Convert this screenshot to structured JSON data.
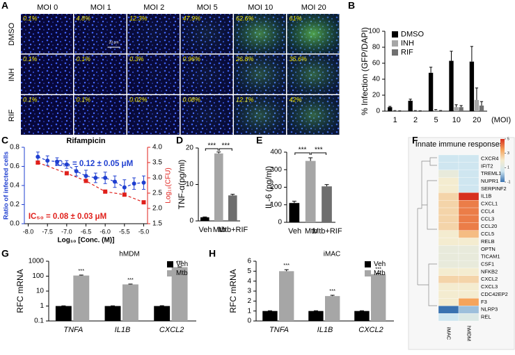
{
  "panel_a": {
    "label": "A",
    "columns": [
      "MOI 0",
      "MOI 1",
      "MOI 2",
      "MOI 5",
      "MOI 10",
      "MOI 20"
    ],
    "rows": [
      {
        "name": "DMSO",
        "values": [
          "0.1%",
          "4.8%",
          "12.3%",
          "47.9%",
          "62.6%",
          "61%"
        ]
      },
      {
        "name": "INH",
        "values": [
          "0.1%",
          "0.1%",
          "0.3%",
          "0.96%",
          "26.8%",
          "35.6%"
        ]
      },
      {
        "name": "RIF",
        "values": [
          "0.1%",
          "0.1%",
          "0.02%",
          "0.08%",
          "12.1%",
          "42%"
        ]
      }
    ],
    "scale_bar": "20 μm"
  },
  "chart_data": [
    {
      "label": "B",
      "type": "grouped_bar",
      "ylabel": "% Infection (GFP/DAPI)",
      "xunit": "(MOI)",
      "categories": [
        "1",
        "2",
        "5",
        "10",
        "20"
      ],
      "series": [
        {
          "name": "DMSO",
          "color": "#000000",
          "values": [
            5,
            13,
            48,
            63,
            62
          ],
          "errors": [
            1,
            2,
            7,
            12,
            19
          ]
        },
        {
          "name": "INH",
          "color": "#a6a6a6",
          "values": [
            0.5,
            0.5,
            1,
            5,
            14
          ],
          "errors": [
            0.2,
            0.2,
            1,
            3,
            15
          ]
        },
        {
          "name": "RIF",
          "color": "#707070",
          "values": [
            0.3,
            0.3,
            0.5,
            5,
            7
          ],
          "errors": [
            0.1,
            0.1,
            0.3,
            2,
            5
          ]
        }
      ],
      "ylim": [
        0,
        100
      ],
      "yticks": [
        0,
        20,
        40,
        60,
        80,
        100
      ],
      "legend": "top-left"
    },
    {
      "label": "C",
      "type": "scatter",
      "title": "Rifampicin",
      "xlabel": "Log₁₀ [Conc. (M)]",
      "ylabel": "Ratio of infected cells",
      "y2label": "Log₁₀(CFU)",
      "series": [
        {
          "color": "#1f3fd0",
          "marker": "circle",
          "x": [
            -7.75,
            -7.5,
            -7.25,
            -7.0,
            -6.75,
            -6.5,
            -6.25,
            -6.0,
            -5.75,
            -5.5,
            -5.25,
            -5.0
          ],
          "values": [
            0.7,
            0.66,
            0.65,
            0.62,
            0.55,
            0.5,
            0.48,
            0.48,
            0.44,
            0.38,
            0.42,
            0.43
          ],
          "errors": [
            0.05,
            0.05,
            0.04,
            0.04,
            0.05,
            0.06,
            0.05,
            0.06,
            0.06,
            0.08,
            0.06,
            0.07
          ]
        },
        {
          "color": "#e0201b",
          "marker": "square",
          "axis": "y2",
          "x": [
            -7.75,
            -7.0,
            -6.5,
            -6.0,
            -5.5,
            -5.0
          ],
          "values": [
            3.5,
            3.15,
            2.9,
            2.55,
            2.45,
            2.2
          ]
        }
      ],
      "annotations": [
        {
          "text": "IC₅₀ = 0.12 ± 0.05 μM",
          "color": "#1f3fd0"
        },
        {
          "text": "IC₅₀ = 0.08 ± 0.03 μM",
          "color": "#e0201b"
        }
      ],
      "xlim": [
        -8.1,
        -4.9
      ],
      "xticks": [
        {
          "value": -8,
          "label": "-8.0"
        },
        -7.5,
        {
          "value": -7,
          "label": "-7.0"
        },
        -6.5,
        {
          "value": -6,
          "label": "-6.0"
        },
        -5.5,
        {
          "value": -5,
          "label": "-5.0"
        }
      ],
      "ylim": [
        0,
        0.8
      ],
      "yticks": [
        {
          "value": 0,
          "label": "0.0"
        },
        0.2,
        0.4,
        0.6,
        0.8
      ],
      "y2lim": [
        1.5,
        4.0
      ],
      "y2ticks": [
        1.5,
        {
          "value": 2,
          "label": "2.0"
        },
        2.5,
        {
          "value": 3,
          "label": "3.0"
        },
        3.5,
        {
          "value": 4,
          "label": "4.0"
        }
      ]
    },
    {
      "label": "D",
      "type": "bar",
      "ylabel": "TNF-α(pg/ml)",
      "categories": [
        "Veh",
        "Mtb",
        "Mtb+RIF"
      ],
      "values": [
        1,
        18.5,
        7
      ],
      "errors": [
        0.1,
        0.4,
        0.3
      ],
      "colors": [
        "#000000",
        "#a6a6a6",
        "#6e6e6e"
      ],
      "ylim": [
        0,
        20
      ],
      "yticks": [
        0,
        10,
        20
      ],
      "significance": [
        "***",
        "***"
      ]
    },
    {
      "label": "E",
      "type": "bar",
      "ylabel": "IL-6 (pg/ml)",
      "categories": [
        "Veh",
        "Mtb",
        "Mtb+RIF"
      ],
      "values": [
        110,
        350,
        205
      ],
      "errors": [
        10,
        18,
        10
      ],
      "colors": [
        "#000000",
        "#a6a6a6",
        "#6e6e6e"
      ],
      "ylim": [
        0,
        400
      ],
      "yticks": [
        0,
        100,
        200,
        300,
        400
      ],
      "significance": [
        "***",
        "***"
      ]
    },
    {
      "label": "F",
      "type": "heatmap",
      "title": "Innate immune responses",
      "columns": [
        "iMAC",
        "hMDM"
      ],
      "rows": [
        "CXCR4",
        "IFIT2",
        "TREML1",
        "NUPR1",
        "SERPINF2",
        "IL1B",
        "CXCL1",
        "CCL4",
        "CCL3",
        "CCL20",
        "CCL5",
        "RELB",
        "OPTN",
        "TICAM1",
        "CSF1",
        "NFKB2",
        "CXCL2",
        "CXCL3",
        "CDC42EP2",
        "F3",
        "NLRP3",
        "REL"
      ],
      "values": [
        [
          0.5,
          0.5
        ],
        [
          0.5,
          0.5
        ],
        [
          1.5,
          0.5
        ],
        [
          2,
          0.5
        ],
        [
          2,
          0.5
        ],
        [
          2.5,
          5
        ],
        [
          2.5,
          4
        ],
        [
          2.5,
          4
        ],
        [
          2.5,
          4
        ],
        [
          2.5,
          4
        ],
        [
          2,
          3
        ],
        [
          2,
          2
        ],
        [
          1.5,
          1.5
        ],
        [
          1.5,
          1.5
        ],
        [
          1.5,
          1.5
        ],
        [
          2,
          2
        ],
        [
          2.5,
          2.5
        ],
        [
          2,
          2
        ],
        [
          2,
          2
        ],
        [
          2,
          3.5
        ],
        [
          -1,
          0
        ],
        [
          0.5,
          1
        ]
      ],
      "zlim": [
        -1,
        5
      ],
      "colors": [
        "#3a72b0",
        "#cfe6f0",
        "#f4ecd0",
        "#f5a45c",
        "#d7301f"
      ],
      "colorbar_ticks": [
        5,
        3,
        1,
        -1
      ]
    },
    {
      "label": "G",
      "type": "grouped_bar",
      "title": "hMDM",
      "ylabel": "RFC mRNA",
      "log": true,
      "categories": [
        "TNFA",
        "IL1B",
        "CXCL2"
      ],
      "series": [
        {
          "name": "Veh",
          "color": "#000000",
          "values": [
            1,
            1,
            1
          ],
          "errors": [
            0.03,
            0.03,
            0.05
          ]
        },
        {
          "name": "Mtb",
          "color": "#a6a6a6",
          "values": [
            110,
            28,
            400
          ],
          "errors": [
            8,
            1.5,
            20
          ]
        }
      ],
      "ylim": [
        0.1,
        1000
      ],
      "yticks": [
        0.1,
        1,
        10,
        100,
        1000
      ],
      "legend": "top-right",
      "significance": [
        "***",
        "***",
        "***"
      ]
    },
    {
      "label": "H",
      "type": "grouped_bar",
      "title": "iMAC",
      "ylabel": "RFC mRNA",
      "categories": [
        "TNFA",
        "IL1B",
        "CXCL2"
      ],
      "series": [
        {
          "name": "Veh",
          "color": "#000000",
          "values": [
            1,
            1,
            1
          ],
          "errors": [
            0.03,
            0.03,
            0.03
          ]
        },
        {
          "name": "Mtb",
          "color": "#a6a6a6",
          "values": [
            5.0,
            2.5,
            4.7
          ],
          "errors": [
            0.15,
            0.08,
            0.08
          ]
        }
      ],
      "ylim": [
        0,
        6
      ],
      "yticks": [
        0,
        1,
        2,
        3,
        4,
        5,
        6
      ],
      "legend": "top-right",
      "significance": [
        "***",
        "***",
        "***"
      ]
    }
  ]
}
